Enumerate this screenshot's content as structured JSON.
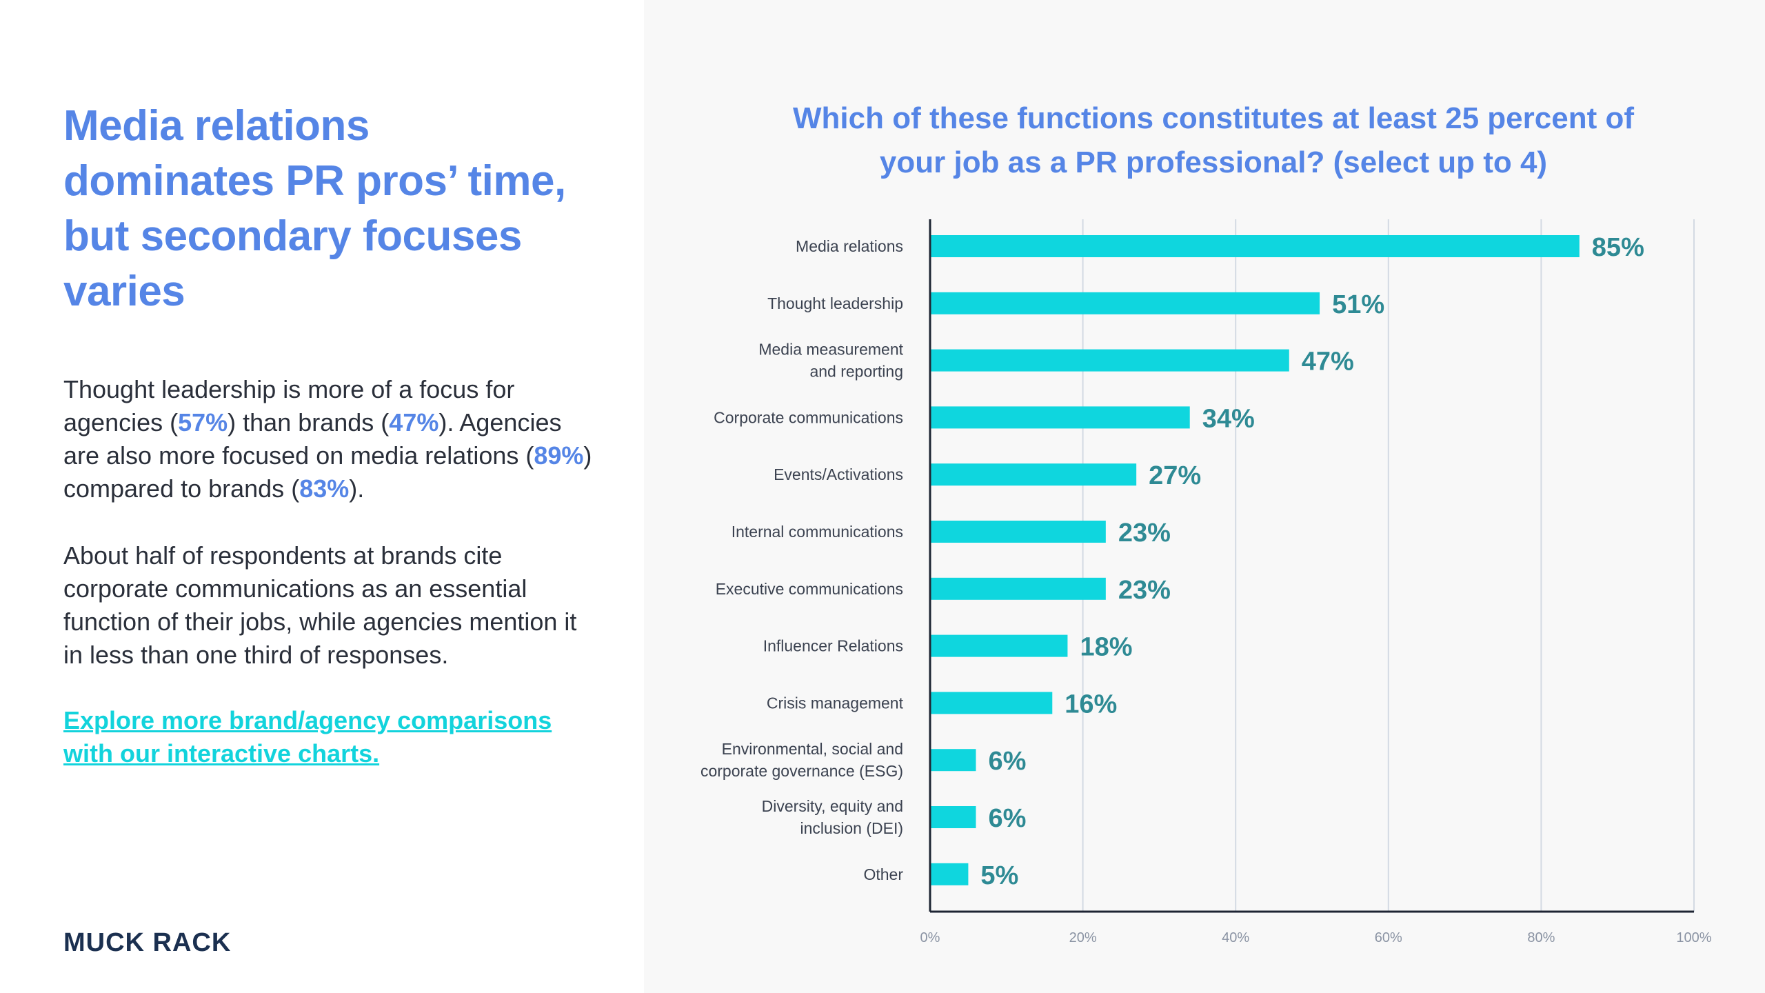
{
  "left": {
    "headline": "Media relations dominates PR pros’ time, but secondary focuses varies",
    "p1": {
      "t1": "Thought leadership is more of a focus for agencies (",
      "v1": "57%",
      "t2": ") than brands (",
      "v2": "47%",
      "t3": "). Agencies are also more focused on media relations (",
      "v3": "89%",
      "t4": ") compared to brands (",
      "v4": "83%",
      "t5": ")."
    },
    "p2": "About half of respondents at brands cite corporate communications as an essential function of their jobs, while agencies mention it in less than one third of responses.",
    "link": "Explore more brand/agency comparisons with our interactive charts.",
    "logo": "MUCK RACK"
  },
  "colors": {
    "accent_blue": "#5585e6",
    "bar_cyan": "#0fd6de",
    "value_label_teal": "#2e8a94",
    "logo_navy": "#1b3050",
    "link_cyan": "#12d3dc"
  },
  "chart_data": {
    "type": "bar",
    "orientation": "horizontal",
    "title": "Which of these functions constitutes at least 25 percent of your job as a PR professional? (select up to 4)",
    "categories": [
      [
        "Media relations"
      ],
      [
        "Thought leadership"
      ],
      [
        "Media measurement",
        "and reporting"
      ],
      [
        "Corporate communications"
      ],
      [
        "Events/Activations"
      ],
      [
        "Internal communications"
      ],
      [
        "Executive communications"
      ],
      [
        "Influencer Relations"
      ],
      [
        "Crisis management"
      ],
      [
        "Environmental, social and",
        "corporate governance (ESG)"
      ],
      [
        "Diversity, equity and",
        "inclusion (DEI)"
      ],
      [
        "Other"
      ]
    ],
    "values": [
      85,
      51,
      47,
      34,
      27,
      23,
      23,
      18,
      16,
      6,
      6,
      5
    ],
    "value_labels": [
      "85%",
      "51%",
      "47%",
      "34%",
      "27%",
      "23%",
      "23%",
      "18%",
      "16%",
      "6%",
      "6%",
      "5%"
    ],
    "xlim": [
      0,
      100
    ],
    "xticks": [
      "0%",
      "20%",
      "40%",
      "60%",
      "80%",
      "100%"
    ],
    "grid": "vertical"
  }
}
